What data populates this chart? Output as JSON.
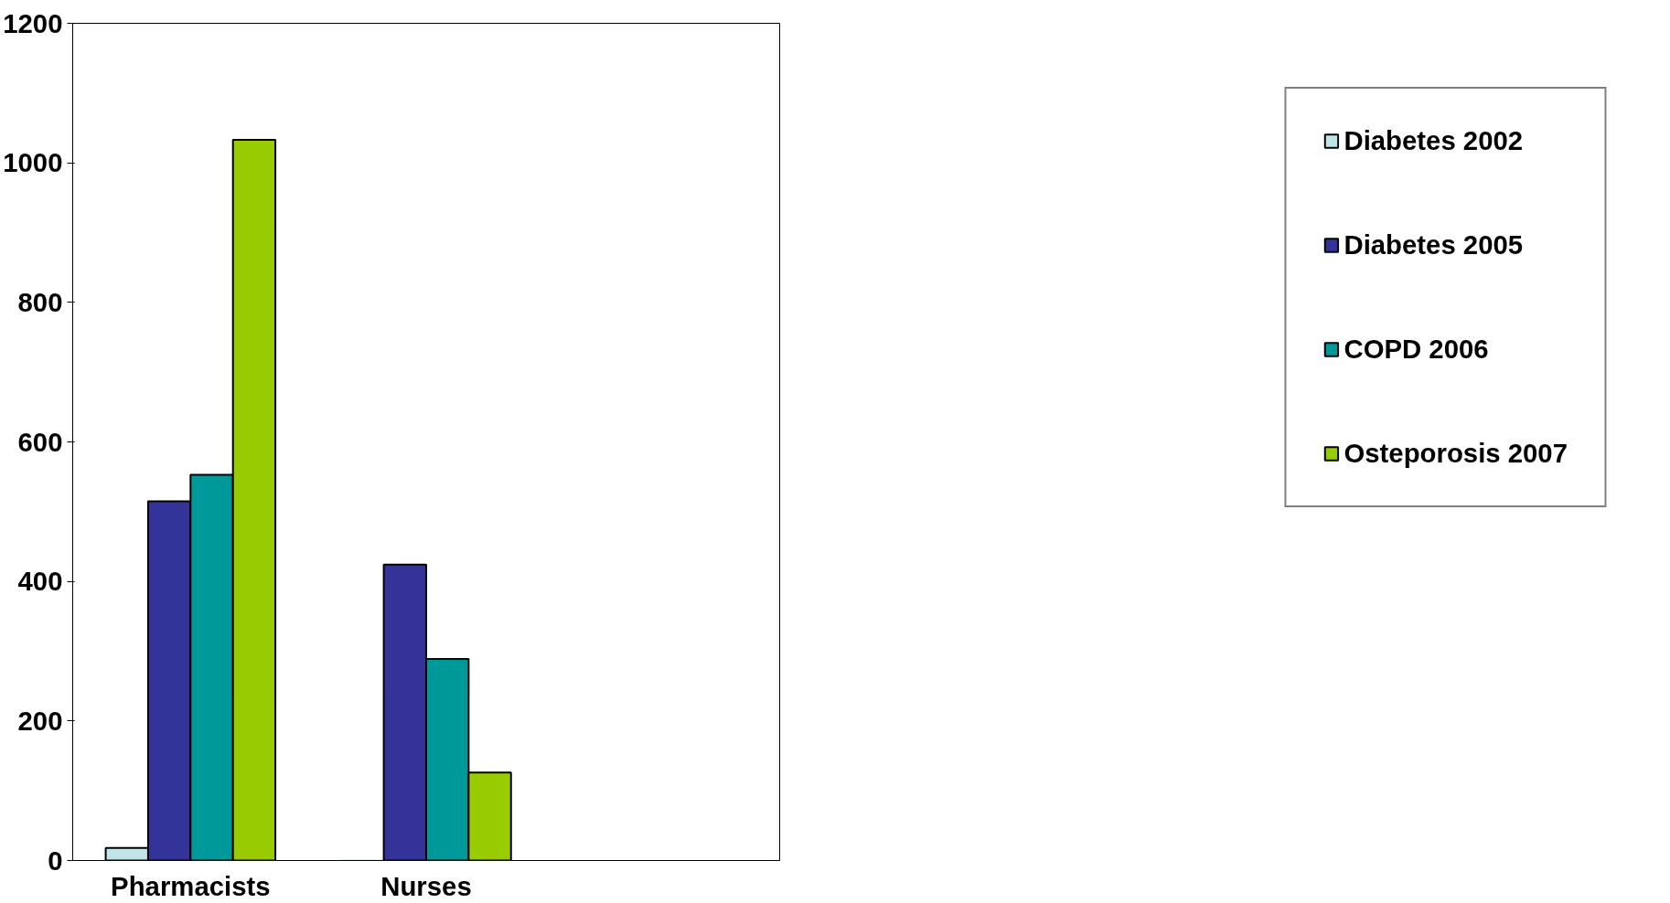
{
  "chart_data": {
    "type": "bar",
    "categories": [
      "Pharmacists",
      "Nurses",
      null
    ],
    "series": [
      {
        "name": "Diabetes 2002",
        "color": "#c0e4e8",
        "values": [
          18,
          0,
          null
        ]
      },
      {
        "name": "Diabetes 2005",
        "color": "#333399",
        "values": [
          515,
          424,
          null
        ]
      },
      {
        "name": "COPD 2006",
        "color": "#009999",
        "values": [
          553,
          289,
          null
        ]
      },
      {
        "name": "Osteporosis 2007",
        "color": "#99cc00",
        "values": [
          1033,
          126,
          null
        ]
      }
    ],
    "ylim": [
      0,
      1200
    ],
    "yticks": [
      0,
      200,
      400,
      600,
      800,
      1000,
      1200
    ],
    "grid": false,
    "legend": "right"
  }
}
